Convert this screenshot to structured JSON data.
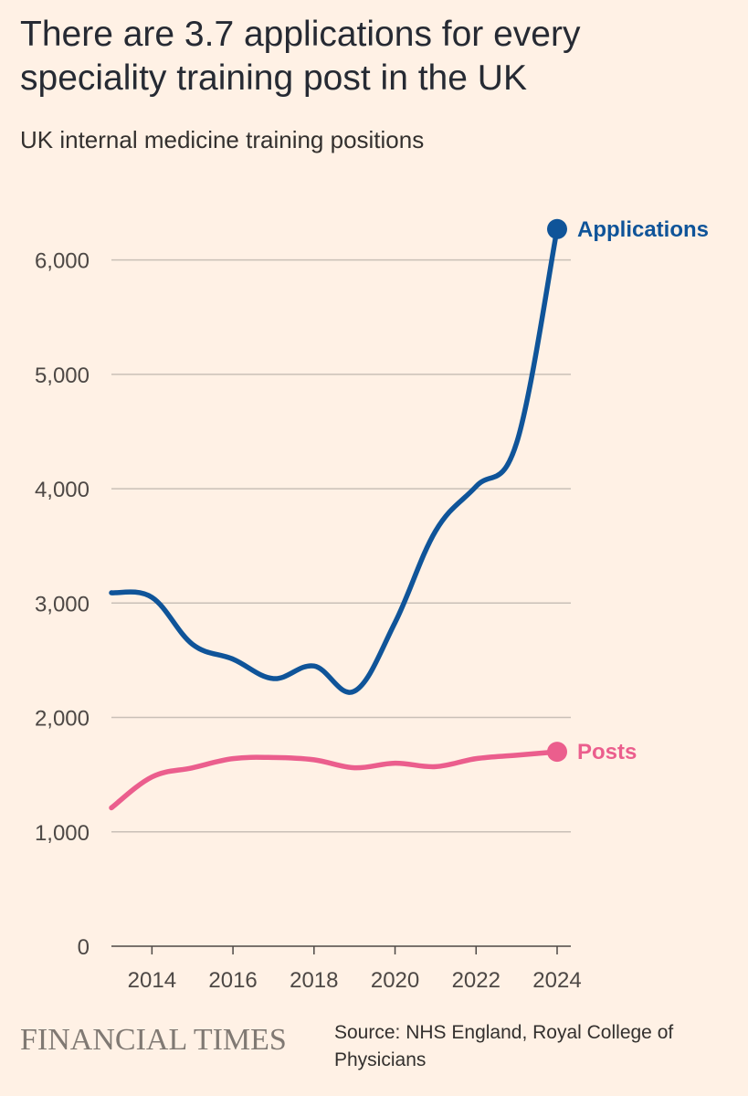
{
  "header": {
    "title": "There are 3.7 applications for every speciality training post in the UK",
    "subtitle": "UK internal medicine training positions"
  },
  "footer": {
    "logo": "FINANCIAL TIMES",
    "source": "Source: NHS England, Royal College of Physicians"
  },
  "chart_data": {
    "type": "line",
    "title": "There are 3.7 applications for every speciality training post in the UK",
    "subtitle": "UK internal medicine training positions",
    "xlabel": "",
    "ylabel": "",
    "xlim": [
      2013,
      2024
    ],
    "ylim": [
      0,
      6500
    ],
    "x_ticks": [
      "2014",
      "2016",
      "2018",
      "2020",
      "2022",
      "2024"
    ],
    "y_ticks": [
      "0",
      "1,000",
      "2,000",
      "3,000",
      "4,000",
      "5,000",
      "6,000"
    ],
    "grid": "horizontal",
    "legend": "direct labels at line ends",
    "x": [
      2013,
      2014,
      2015,
      2016,
      2017,
      2018,
      2019,
      2020,
      2021,
      2022,
      2023,
      2024
    ],
    "series": [
      {
        "name": "Applications",
        "color": "#0F5499",
        "values": [
          3090,
          3050,
          2640,
          2510,
          2340,
          2450,
          2230,
          2830,
          3630,
          4020,
          4400,
          6270
        ]
      },
      {
        "name": "Posts",
        "color": "#EB5E8D",
        "values": [
          1210,
          1480,
          1560,
          1640,
          1650,
          1630,
          1560,
          1600,
          1570,
          1640,
          1670,
          1700
        ]
      }
    ]
  }
}
